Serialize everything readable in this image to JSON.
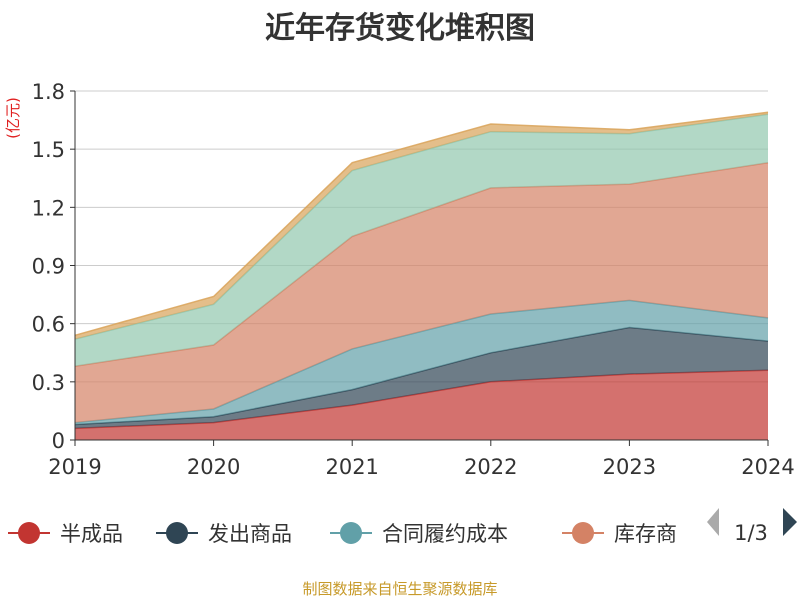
{
  "chart_data": {
    "type": "area",
    "stacked": true,
    "title": "近年存货变化堆积图",
    "unit_label": "(亿元)",
    "xlabel": "",
    "ylabel": "",
    "categories": [
      "2019",
      "2020",
      "2021",
      "2022",
      "2023",
      "2024"
    ],
    "ylim": [
      0,
      1.8
    ],
    "yticks": [
      0,
      0.3,
      0.6,
      0.9,
      1.2,
      1.5,
      1.8
    ],
    "ytick_labels": [
      "0",
      "0.3",
      "0.6",
      "0.9",
      "1.2",
      "1.5",
      "1.8"
    ],
    "grid": true,
    "series": [
      {
        "name": "半成品",
        "color": "#c23531",
        "values": [
          0.06,
          0.09,
          0.18,
          0.3,
          0.34,
          0.36
        ]
      },
      {
        "name": "发出商品",
        "color": "#2f4554",
        "values": [
          0.02,
          0.03,
          0.08,
          0.15,
          0.24,
          0.15
        ]
      },
      {
        "name": "合同履约成本",
        "color": "#61a0a8",
        "values": [
          0.01,
          0.04,
          0.21,
          0.2,
          0.14,
          0.12
        ]
      },
      {
        "name": "库存商品",
        "color": "#d48265",
        "values": [
          0.29,
          0.33,
          0.58,
          0.65,
          0.6,
          0.8
        ]
      },
      {
        "name": "",
        "color": "#91c7ae",
        "values": [
          0.14,
          0.21,
          0.34,
          0.29,
          0.26,
          0.25
        ]
      },
      {
        "name": "",
        "color": "#d9a359",
        "values": [
          0.02,
          0.04,
          0.04,
          0.04,
          0.02,
          0.01
        ]
      }
    ],
    "legend": {
      "placement": "bottom",
      "visible_items": [
        "半成品",
        "发出商品",
        "合同履约成本",
        "库存商"
      ],
      "page_indicator": "1/3"
    },
    "source_note": "制图数据来自恒生聚源数据库"
  }
}
